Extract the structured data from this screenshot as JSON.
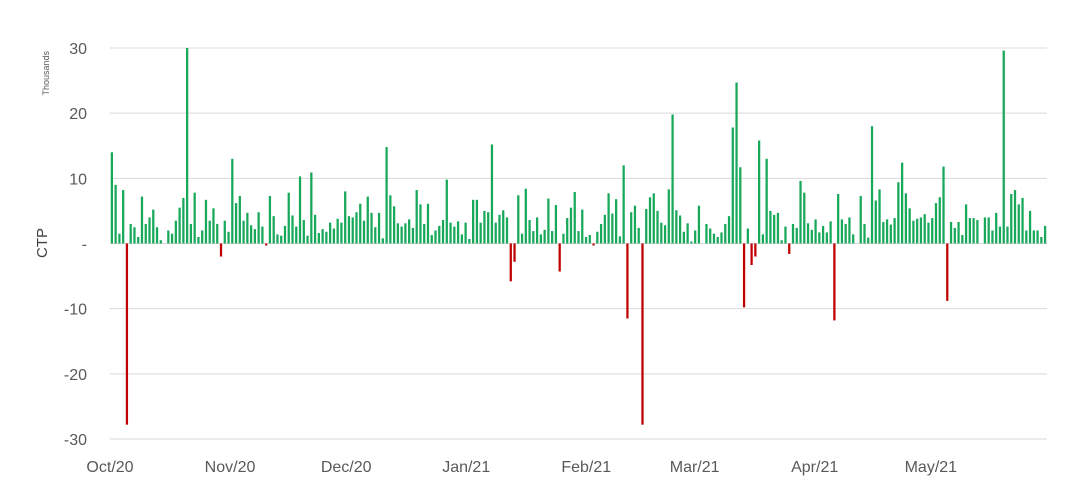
{
  "chart_data": {
    "type": "bar",
    "title": "",
    "ylabel": "CTP",
    "unit_label": "Thousands",
    "ylim": [
      -30,
      30
    ],
    "yticks": [
      30,
      20,
      10,
      0,
      -10,
      -20,
      -30
    ],
    "ytick_labels": [
      "30",
      "20",
      "10",
      "-",
      "-10",
      "-20",
      "-30"
    ],
    "x_range": [
      "2020-10-01",
      "2021-05-31"
    ],
    "xticks": [
      {
        "date": "2020-10-01",
        "label": "Oct/20"
      },
      {
        "date": "2020-11-01",
        "label": "Nov/20"
      },
      {
        "date": "2020-12-01",
        "label": "Dec/20"
      },
      {
        "date": "2021-01-01",
        "label": "Jan/21"
      },
      {
        "date": "2021-02-01",
        "label": "Feb/21"
      },
      {
        "date": "2021-03-01",
        "label": "Mar/21"
      },
      {
        "date": "2021-04-01",
        "label": "Apr/21"
      },
      {
        "date": "2021-05-01",
        "label": "May/21"
      }
    ],
    "grid": true,
    "colors": {
      "positive": "#17a85a",
      "negative": "#c00000"
    },
    "series": [
      {
        "values": [
          14,
          9,
          1.5,
          8.2,
          -27.8,
          3,
          2.5,
          1,
          7.2,
          3,
          4,
          5.2,
          2.5,
          0.5,
          0,
          2,
          1.5,
          3.5,
          5.5,
          7,
          30,
          3,
          7.8,
          1,
          2,
          6.7,
          3.5,
          5.4,
          3,
          -2,
          3.5,
          1.8,
          13,
          6.2,
          7.3,
          3.5,
          4.7,
          2.8,
          2.2,
          4.8,
          2.6,
          -0.3,
          7.3,
          4.2,
          1.4,
          1.2,
          2.7,
          7.8,
          4.3,
          2.6,
          10.3,
          3.6,
          1.2,
          10.9,
          4.4,
          1.6,
          2.2,
          1.8,
          3.2,
          2.3,
          3.8,
          3.2,
          8,
          4.2,
          4,
          4.8,
          6.1,
          3.5,
          7.2,
          4.7,
          2.5,
          4.7,
          0.8,
          14.8,
          7.4,
          5.7,
          3.1,
          2.6,
          3.1,
          3.7,
          2.4,
          8.2,
          6,
          3,
          6.1,
          1.3,
          2,
          2.7,
          3.6,
          9.8,
          3.2,
          2.6,
          3.4,
          1.4,
          3.2,
          0.7,
          6.7,
          6.7,
          3.2,
          5,
          4.8,
          15.2,
          3.2,
          4.4,
          5.1,
          4,
          -5.8,
          -2.8,
          7.4,
          1.5,
          8.4,
          3.6,
          1.9,
          4,
          1.4,
          2.1,
          6.9,
          1.9,
          5.9,
          -4.3,
          1.5,
          3.9,
          5.5,
          7.9,
          1.9,
          5.2,
          1,
          1.3,
          -0.3,
          1.8,
          3,
          4.4,
          7.7,
          4.6,
          6.8,
          1.1,
          12,
          -11.5,
          4.8,
          5.8,
          2.4,
          -27.8,
          5.3,
          7.1,
          7.7,
          5,
          3.2,
          2.8,
          8.3,
          19.8,
          5.1,
          4.3,
          1.8,
          3.1,
          0.3,
          2,
          5.8,
          0,
          3,
          2.3,
          1.5,
          1,
          1.7,
          3,
          4.2,
          17.8,
          24.7,
          11.7,
          -9.8,
          2.3,
          -3.3,
          -2,
          15.8,
          1.4,
          13,
          5,
          4.4,
          4.7,
          0.5,
          2.6,
          -1.6,
          3,
          2.4,
          9.6,
          7.8,
          3.1,
          2.1,
          3.7,
          1.7,
          2.7,
          1.7,
          3.4,
          -11.8,
          7.6,
          3.7,
          3,
          4,
          1.4,
          0,
          7.3,
          3,
          0.9,
          18,
          6.6,
          8.3,
          3.3,
          3.7,
          2.9,
          3.9,
          9.4,
          12.4,
          7.7,
          5.4,
          3.5,
          3.8,
          4,
          4.5,
          3.2,
          3.9,
          6.2,
          7.1,
          11.8,
          -8.8,
          3.3,
          2.4,
          3.3,
          1.3,
          6,
          3.9,
          3.9,
          3.6,
          0,
          4,
          4,
          2,
          4.7,
          2.6,
          29.6,
          2.6,
          7.6,
          8.2,
          6,
          7,
          2,
          5,
          2,
          2,
          1,
          2.7
        ]
      }
    ]
  }
}
